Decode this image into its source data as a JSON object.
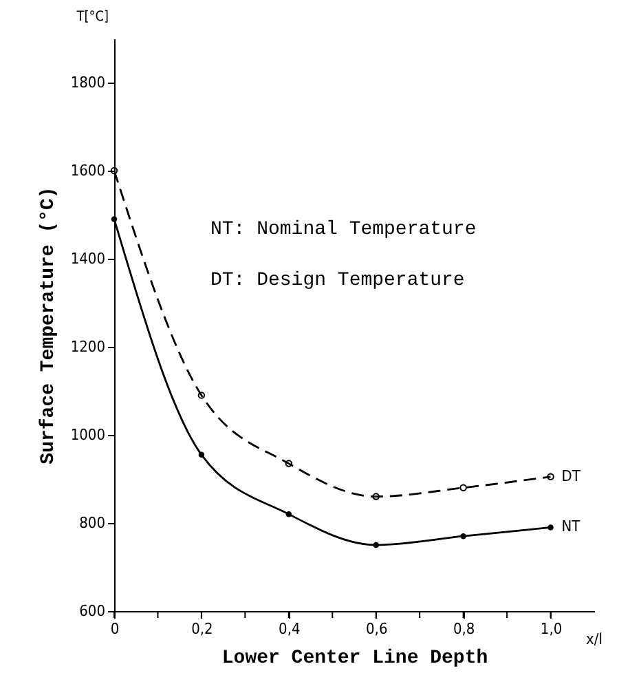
{
  "chart_data": {
    "type": "line",
    "xlabel": "Lower Center Line Depth",
    "ylabel": "Surface Temperature (°C)",
    "x": [
      0,
      0.2,
      0.4,
      0.6,
      0.8,
      1.0
    ],
    "series": [
      {
        "name": "DT",
        "color": "#000000",
        "line_style": "dashed",
        "values": [
          1600,
          1090,
          935,
          860,
          880,
          905
        ]
      },
      {
        "name": "NT",
        "color": "#000000",
        "line_style": "solid",
        "values": [
          1490,
          955,
          820,
          750,
          770,
          790
        ]
      }
    ],
    "xlim": [
      0,
      1.1
    ],
    "ylim": [
      600,
      1900
    ],
    "xticks": [
      0,
      {
        "value": 0.1,
        "label": null
      },
      {
        "value": 0.2,
        "label": "0,2"
      },
      {
        "value": 0.3,
        "label": null
      },
      {
        "value": 0.4,
        "label": "0,4"
      },
      {
        "value": 0.5,
        "label": null
      },
      {
        "value": 0.6,
        "label": "0,6"
      },
      {
        "value": 0.7,
        "label": null
      },
      {
        "value": 0.8,
        "label": "0,8"
      },
      {
        "value": 0.9,
        "label": null
      },
      {
        "value": 1.0,
        "label": "1,0"
      }
    ],
    "yticks": [
      600,
      800,
      1000,
      1200,
      1400,
      1600,
      1800
    ],
    "marker": "circle",
    "grid": false,
    "annotations": [
      "NT: Nominal Temperature",
      "DT: Design Temperature",
      "T[°C]",
      "x/l"
    ]
  }
}
